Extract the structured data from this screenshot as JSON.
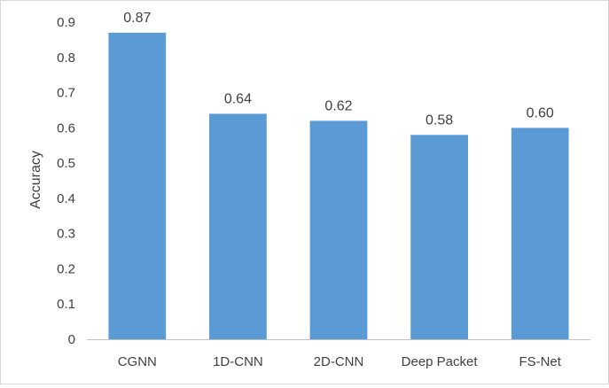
{
  "chart_data": {
    "type": "bar",
    "title": "",
    "xlabel": "",
    "ylabel": "Accuracy",
    "categories": [
      "CGNN",
      "1D-CNN",
      "2D-CNN",
      "Deep Packet",
      "FS-Net"
    ],
    "values": [
      0.87,
      0.64,
      0.62,
      0.58,
      0.6
    ],
    "data_labels": [
      "0.87",
      "0.64",
      "0.62",
      "0.58",
      "0.60"
    ],
    "ylim": [
      0,
      0.9
    ],
    "yticks": [
      0,
      0.1,
      0.2,
      0.3,
      0.4,
      0.5,
      0.6,
      0.7,
      0.8,
      0.9
    ],
    "ytick_labels": [
      "0",
      "0.1",
      "0.2",
      "0.3",
      "0.4",
      "0.5",
      "0.6",
      "0.7",
      "0.8",
      "0.9"
    ],
    "grid": false,
    "legend": "none",
    "bar_color": "#5b9bd5",
    "axis_color": "#bfbfbf",
    "text_color": "#404040"
  }
}
